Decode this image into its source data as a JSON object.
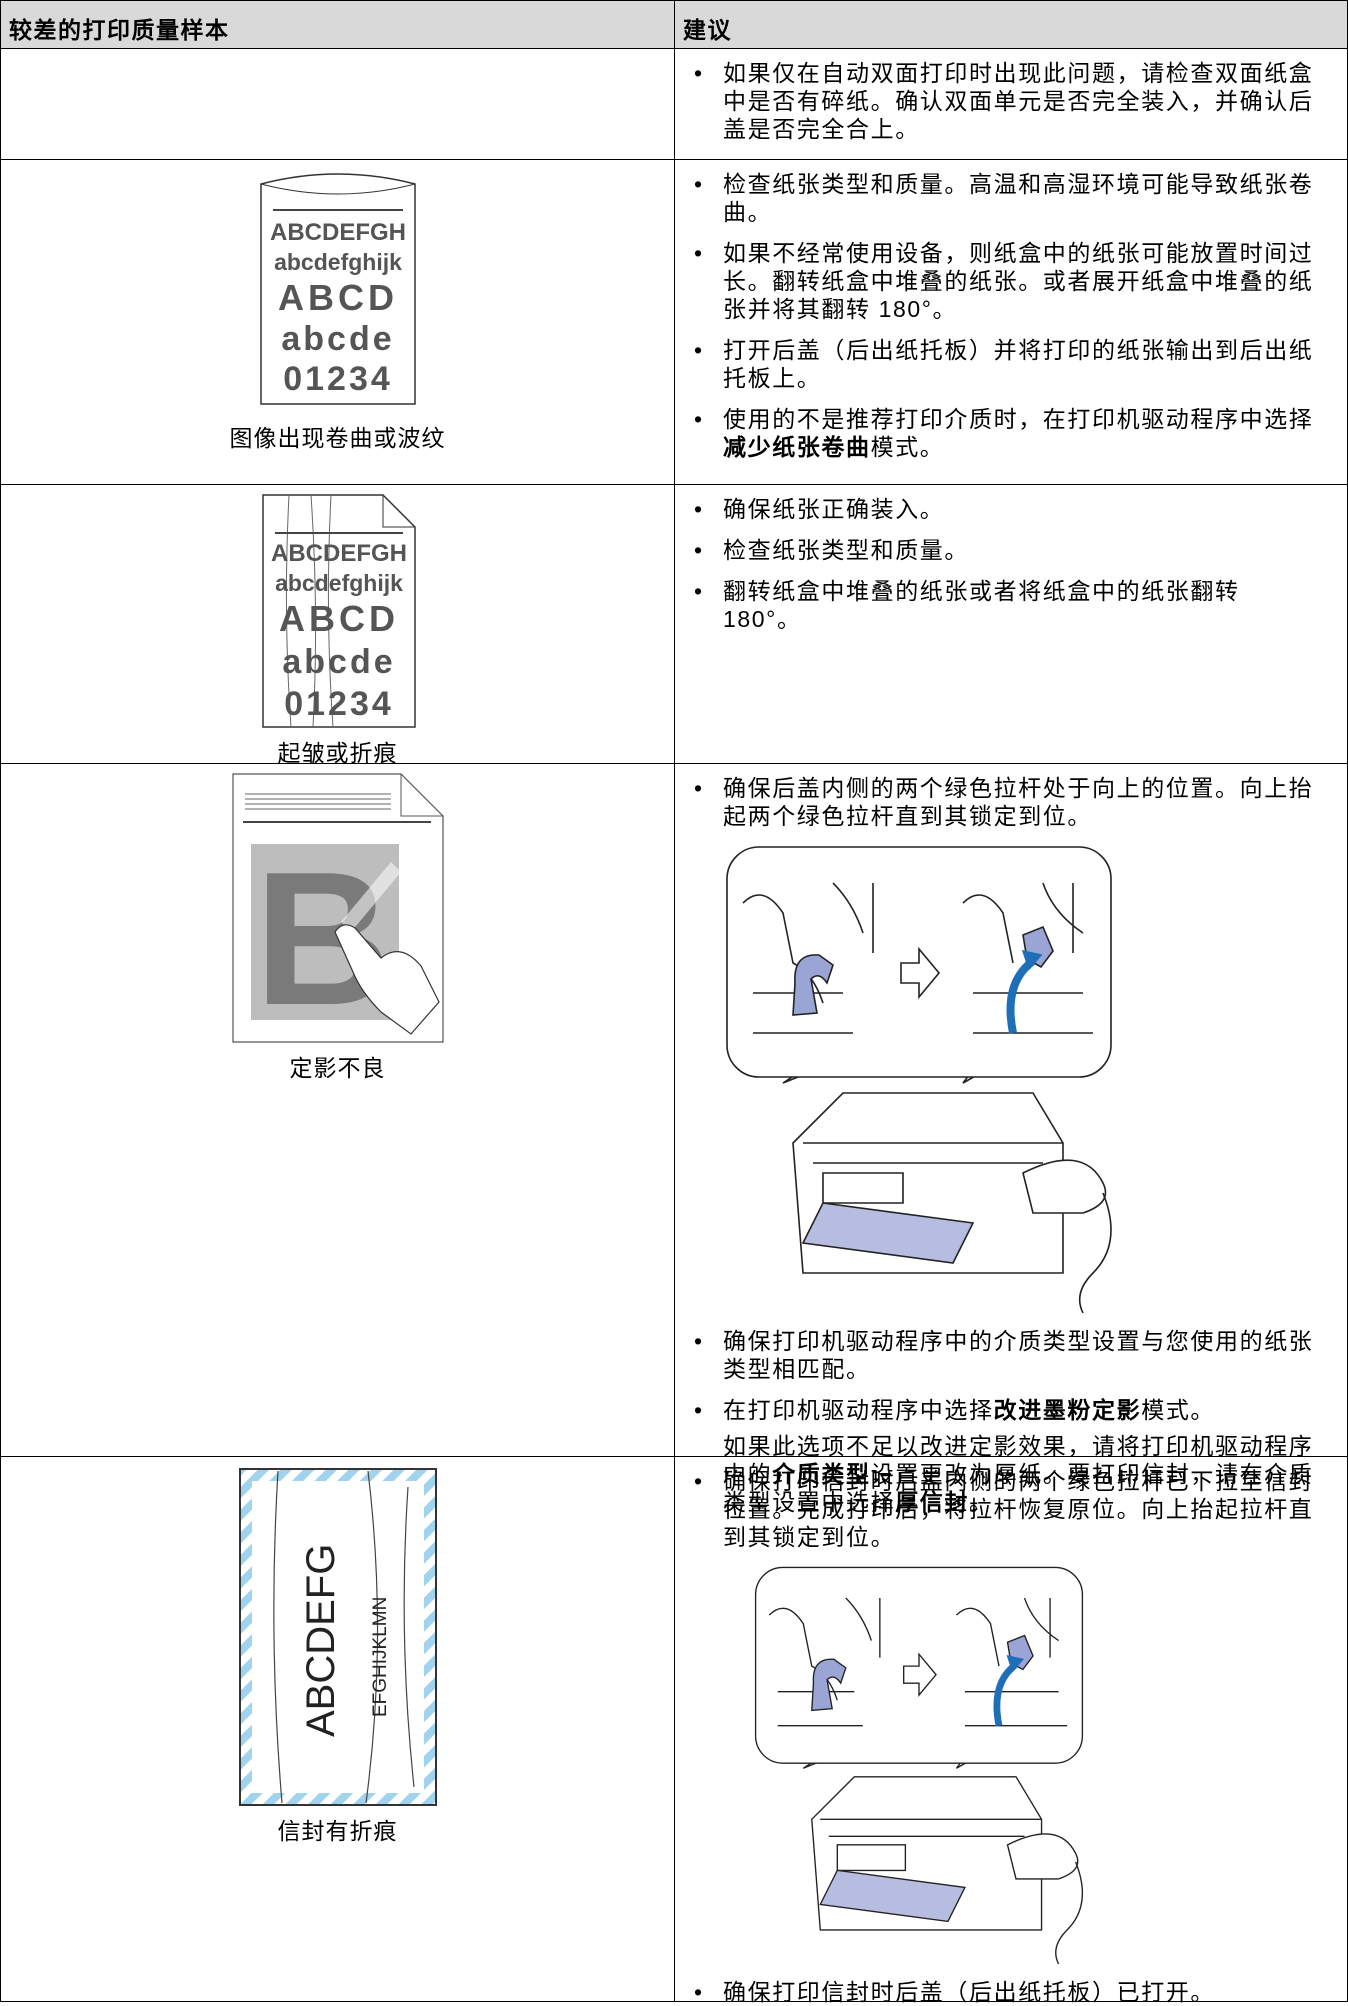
{
  "table": {
    "header": [
      "较差的打印质量样本",
      "建议"
    ],
    "rows": [
      {
        "caption": null,
        "advice": [
          [
            "如果仅在自动双面打印时出现此问题，请检查双面纸盒中是否有碎纸。确认双面单元是否完全装入，并确认后盖是否完全合上。"
          ]
        ]
      },
      {
        "caption": "图像出现卷曲或波纹",
        "sample": [
          "ABCDEFGH",
          "abcdefghijk",
          "ABCD",
          "abcde",
          "01234"
        ],
        "advice": [
          [
            "检查纸张类型和质量。高温和高湿环境可能导致纸张卷曲。"
          ],
          [
            "如果不经常使用设备，则纸盒中的纸张可能放置时间过长。翻转纸盒中堆叠的纸张。或者展开纸盒中堆叠的纸张并将其翻转 180°。"
          ],
          [
            "打开后盖（后出纸托板）并将打印的纸张输出到后出纸托板上。"
          ],
          [
            "使用的不是推荐打印介质时，在打印机驱动程序中选择",
            {
              "bold": "减少纸张卷曲"
            },
            "模式。"
          ]
        ]
      },
      {
        "caption": "起皱或折痕",
        "sample": [
          "ABCDEFGH",
          "abcdefghijk",
          "ABCD",
          "abcde",
          "01234"
        ],
        "advice": [
          [
            "确保纸张正确装入。"
          ],
          [
            "检查纸张类型和质量。"
          ],
          [
            "翻转纸盒中堆叠的纸张或者将纸盒中的纸张翻转 180°。"
          ]
        ]
      },
      {
        "caption": "定影不良",
        "sample": [
          "B"
        ],
        "advice": [
          [
            "确保后盖内侧的两个绿色拉杆处于向上的位置。向上抬起两个绿色拉杆直到其锁定到位。"
          ],
          [
            "确保打印机驱动程序中的介质类型设置与您使用的纸张类型相匹配。"
          ],
          [
            "在打印机驱动程序中选择",
            {
              "bold": "改进墨粉定影"
            },
            "模式。"
          ],
          [
            "如果此选项不足以改进定影效果，请将打印机驱动程序中的",
            {
              "bold": "介质类型"
            },
            "设置更改为厚纸。要打印信封，请在介质类型设置中选择",
            {
              "bold": "厚信封"
            },
            "。"
          ]
        ]
      },
      {
        "caption": "信封有折痕",
        "sample": [
          "ABCDEFG",
          "EFGHIJKLMN"
        ],
        "advice": [
          [
            "确保打印信封时后盖内侧的两个绿色拉杆已下拉至信封位置。完成打印后，将拉杆恢复原位。向上抬起拉杆直到其锁定到位。"
          ],
          [
            "确保打印信封时后盖（后出纸托板）已打开。"
          ]
        ]
      }
    ]
  }
}
